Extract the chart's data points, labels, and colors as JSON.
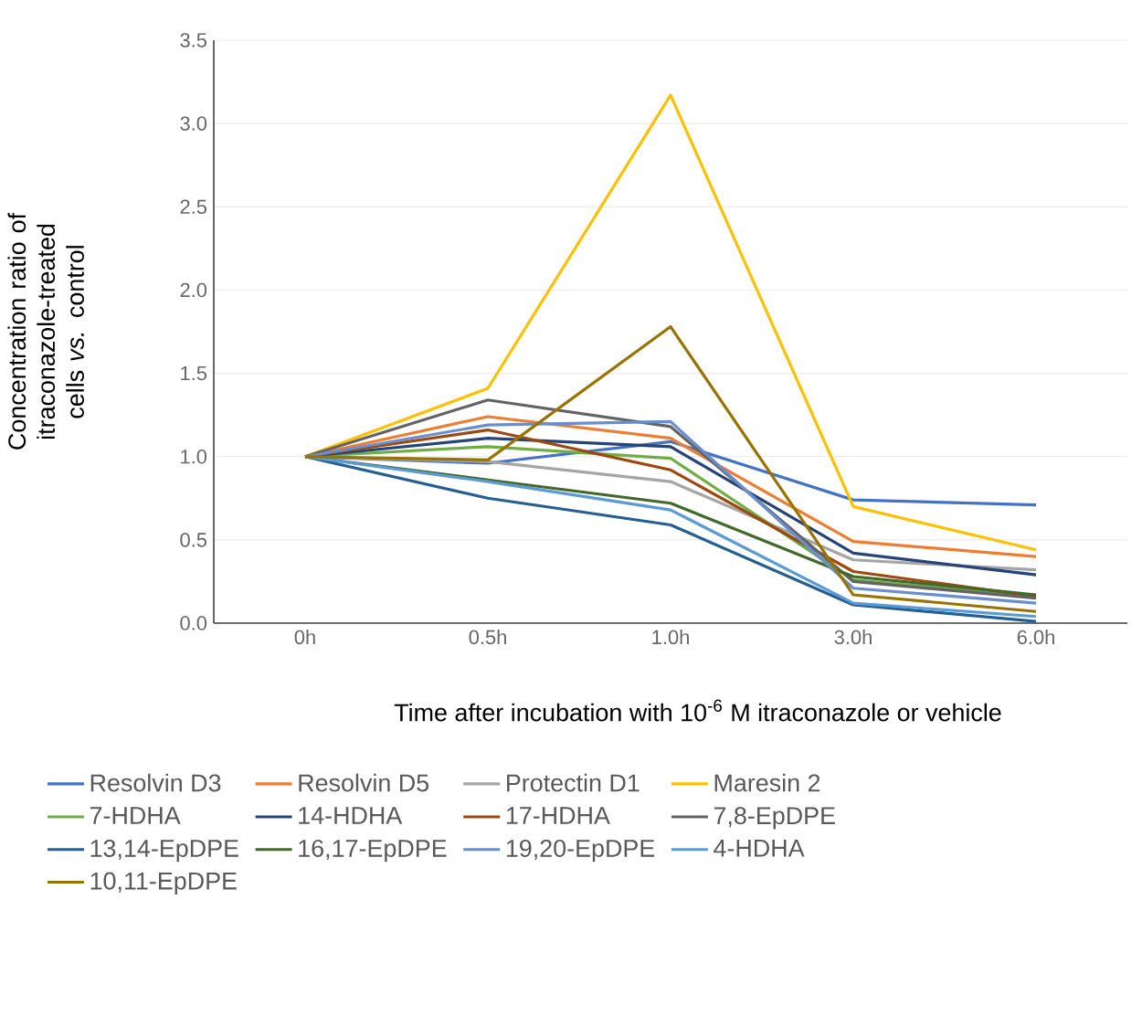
{
  "chart_data": {
    "type": "line",
    "xlabel": "Time after incubation with 10$^{-6}$ M itraconazole or vehicle",
    "ylabel": "Concentration ratio of itraconazole-treated cells *vs.* control",
    "categories": [
      "0h",
      "0.5h",
      "1.0h",
      "3.0h",
      "6.0h"
    ],
    "ylim": [
      0,
      3.5
    ],
    "yticks": [
      {
        "value": 0,
        "label": "0.0"
      },
      {
        "value": 0.5,
        "label": "0.5"
      },
      {
        "value": 1,
        "label": "1.0"
      },
      {
        "value": 1.5,
        "label": "1.5"
      },
      {
        "value": 2,
        "label": "2.0"
      },
      {
        "value": 2.5,
        "label": "2.5"
      },
      {
        "value": 3,
        "label": "3.0"
      },
      {
        "value": 3.5,
        "label": "3.5"
      }
    ],
    "grid": "y",
    "legend": "bottom",
    "marker": "none",
    "line_style": "solid",
    "series": [
      {
        "name": "Resolvin D3",
        "color": "#4472c4",
        "values": [
          1,
          0.96,
          1.09,
          0.74,
          0.71
        ]
      },
      {
        "name": "Resolvin D5",
        "color": "#ed7d31",
        "values": [
          1,
          1.24,
          1.11,
          0.49,
          0.4
        ]
      },
      {
        "name": "Protectin D1",
        "color": "#a5a5a5",
        "values": [
          1,
          0.97,
          0.85,
          0.38,
          0.32
        ]
      },
      {
        "name": "Maresin 2",
        "color": "#ffc000",
        "values": [
          1,
          1.41,
          3.17,
          0.7,
          0.44
        ]
      },
      {
        "name": "7-HDHA",
        "color": "#70ad47",
        "values": [
          1,
          1.06,
          0.99,
          0.26,
          0.16
        ]
      },
      {
        "name": "14-HDHA",
        "color": "#264478",
        "values": [
          1,
          1.11,
          1.06,
          0.42,
          0.29
        ]
      },
      {
        "name": "17-HDHA",
        "color": "#9e480e",
        "values": [
          1,
          1.16,
          0.92,
          0.31,
          0.16
        ]
      },
      {
        "name": "7,8-EpDPE",
        "color": "#636363",
        "values": [
          1,
          1.34,
          1.18,
          0.25,
          0.15
        ]
      },
      {
        "name": "13,14-EpDPE",
        "color": "#255e91",
        "values": [
          1,
          0.75,
          0.59,
          0.11,
          0.01
        ]
      },
      {
        "name": "16,17-EpDPE",
        "color": "#43682b",
        "values": [
          1,
          0.86,
          0.72,
          0.28,
          0.17
        ]
      },
      {
        "name": "19,20-EpDPE",
        "color": "#698ed0",
        "values": [
          1,
          1.19,
          1.21,
          0.21,
          0.12
        ]
      },
      {
        "name": "4-HDHA",
        "color": "#5b9bd5",
        "values": [
          1,
          0.85,
          0.68,
          0.12,
          0.04
        ]
      },
      {
        "name": "10,11-EpDPE",
        "color": "#997300",
        "values": [
          1,
          0.98,
          1.78,
          0.17,
          0.07
        ]
      }
    ]
  }
}
